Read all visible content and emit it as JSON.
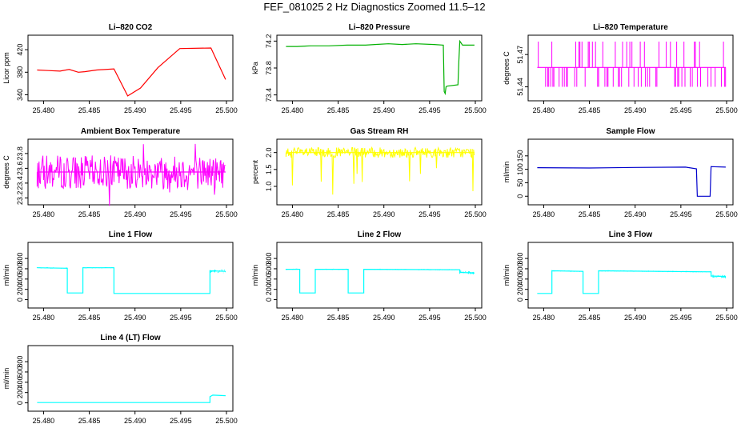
{
  "figure_title": "FEF_081025  2 Hz Diagnostics Zoomed 11.5–12",
  "chart_data": [
    {
      "type": "line",
      "title": "Li–820 CO2",
      "ylabel": "Licor ppm",
      "color": "#ff0000",
      "xlim": [
        25.479,
        25.5
      ],
      "ylim": [
        335,
        440
      ],
      "xticks": [
        "25.480",
        "25.485",
        "25.490",
        "25.495",
        "25.500"
      ],
      "yticks": [
        "340",
        "380",
        "420"
      ],
      "ytick_values": [
        340,
        380,
        420
      ],
      "series": [
        {
          "x": [
            25.4793,
            25.4805,
            25.4805,
            25.4818,
            25.4818,
            25.4828,
            25.4828,
            25.4838,
            25.4838,
            25.4845,
            25.4845,
            25.4858,
            25.4858,
            25.4877,
            25.4877,
            25.4892,
            25.4892,
            25.4906,
            25.4906,
            25.4925,
            25.4925,
            25.4949,
            25.4949,
            25.4983,
            25.4983,
            25.4999
          ],
          "y": [
            384,
            383,
            383,
            382,
            382,
            385,
            385,
            380,
            380,
            381,
            381,
            384,
            384,
            386,
            386,
            338,
            338,
            352,
            352,
            388,
            388,
            422,
            422,
            423,
            423,
            367
          ]
        }
      ]
    },
    {
      "type": "line",
      "title": "Li–820 Pressure",
      "ylabel": "kPa",
      "color": "#00b000",
      "xlim": [
        25.479,
        25.5
      ],
      "ylim": [
        73.36,
        74.24
      ],
      "xticks": [
        "25.480",
        "25.485",
        "25.490",
        "25.495",
        "25.500"
      ],
      "yticks": [
        "73.4",
        "73.8",
        "74.2"
      ],
      "ytick_values": [
        73.4,
        73.8,
        74.2
      ],
      "series": [
        {
          "x": [
            25.4793,
            25.4805,
            25.482,
            25.484,
            25.486,
            25.488,
            25.489,
            25.4905,
            25.492,
            25.4935,
            25.4955,
            25.4965,
            25.4966,
            25.4967,
            25.4968,
            25.4969,
            25.4981,
            25.4982,
            25.4983,
            25.4984,
            25.4986,
            25.4999
          ],
          "y": [
            74.12,
            74.12,
            74.13,
            74.13,
            74.14,
            74.14,
            74.15,
            74.16,
            74.15,
            74.16,
            74.15,
            74.14,
            73.45,
            73.42,
            73.52,
            73.53,
            73.55,
            73.9,
            74.2,
            74.18,
            74.14,
            74.14
          ]
        }
      ]
    },
    {
      "type": "line",
      "title": "Li–820 Temperature",
      "ylabel": "degrees C",
      "color": "#ff00ff",
      "xlim": [
        25.479,
        25.5
      ],
      "ylim": [
        51.43,
        51.485
      ],
      "xticks": [
        "25.480",
        "25.485",
        "25.490",
        "25.495",
        "25.500"
      ],
      "yticks": [
        "51.44",
        "51.47"
      ],
      "ytick_values": [
        51.44,
        51.47
      ],
      "series": [
        {
          "x": [
            25.4793,
            25.4999
          ],
          "y": [
            51.458,
            51.458
          ]
        }
      ]
    },
    {
      "type": "line",
      "title": "Ambient Box Temperature",
      "ylabel": "degrees C",
      "color": "#ff00ff",
      "xlim": [
        25.479,
        25.5
      ],
      "ylim": [
        23.15,
        23.95
      ],
      "xticks": [
        "25.480",
        "25.485",
        "25.490",
        "25.495",
        "25.500"
      ],
      "yticks": [
        "23.2",
        "23.4",
        "23.6",
        "23.8"
      ],
      "ytick_values": [
        23.2,
        23.4,
        23.6,
        23.8
      ],
      "series": [
        {
          "x": [
            25.4793,
            25.4999
          ],
          "y": [
            23.55,
            23.55
          ]
        }
      ]
    },
    {
      "type": "line",
      "title": "Gas Stream RH",
      "ylabel": "percent",
      "color": "#ffff00",
      "xlim": [
        25.479,
        25.5
      ],
      "ylim": [
        0.55,
        2.3
      ],
      "xticks": [
        "25.480",
        "25.485",
        "25.490",
        "25.495",
        "25.500"
      ],
      "yticks": [
        "1.0",
        "1.5",
        "2.0"
      ],
      "ytick_values": [
        1.0,
        1.5,
        2.0
      ],
      "series": [
        {
          "x": [
            25.4793,
            25.4999
          ],
          "y": [
            2.0,
            2.0
          ]
        }
      ]
    },
    {
      "type": "line",
      "title": "Sample Flow",
      "ylabel": "ml/min",
      "color": "#0000cc",
      "xlim": [
        25.479,
        25.5
      ],
      "ylim": [
        -20,
        200
      ],
      "xticks": [
        "25.480",
        "25.485",
        "25.490",
        "25.495",
        "25.500"
      ],
      "yticks": [
        "0",
        "50",
        "100",
        "150"
      ],
      "ytick_values": [
        0,
        50,
        100,
        150
      ],
      "series": [
        {
          "x": [
            25.4793,
            25.485,
            25.49,
            25.4955,
            25.4967,
            25.4968,
            25.4982,
            25.4983,
            25.4999
          ],
          "y": [
            106,
            105,
            107,
            108,
            102,
            0,
            0,
            110,
            108
          ]
        }
      ]
    },
    {
      "type": "line",
      "title": "Line 1 Flow",
      "ylabel": "ml/min",
      "color": "#00ffff",
      "xlim": [
        25.479,
        25.5
      ],
      "ylim": [
        -100,
        1050
      ],
      "xticks": [
        "25.480",
        "25.485",
        "25.490",
        "25.495",
        "25.500"
      ],
      "yticks": [
        "0",
        "200",
        "400",
        "600",
        "800"
      ],
      "ytick_values": [
        0,
        200,
        400,
        600,
        800
      ],
      "series": [
        {
          "x": [
            25.4793,
            25.4826,
            25.4826,
            25.4843,
            25.4843,
            25.4877,
            25.4877,
            25.4982,
            25.4982,
            25.4999
          ],
          "y": [
            620,
            610,
            130,
            130,
            620,
            620,
            120,
            120,
            560,
            550
          ]
        }
      ]
    },
    {
      "type": "line",
      "title": "Line 2 Flow",
      "ylabel": "ml/min",
      "color": "#00ffff",
      "xlim": [
        25.479,
        25.5
      ],
      "ylim": [
        -100,
        1050
      ],
      "xticks": [
        "25.480",
        "25.485",
        "25.490",
        "25.495",
        "25.500"
      ],
      "yticks": [
        "0",
        "200",
        "400",
        "600",
        "800"
      ],
      "ytick_values": [
        0,
        200,
        400,
        600,
        800
      ],
      "series": [
        {
          "x": [
            25.4793,
            25.4808,
            25.4808,
            25.4825,
            25.4825,
            25.4861,
            25.4861,
            25.4878,
            25.4878,
            25.4983,
            25.4983,
            25.4999
          ],
          "y": [
            590,
            590,
            130,
            130,
            590,
            590,
            130,
            130,
            590,
            580,
            530,
            520
          ]
        }
      ]
    },
    {
      "type": "line",
      "title": "Line 3 Flow",
      "ylabel": "ml/min",
      "color": "#00ffff",
      "xlim": [
        25.479,
        25.5
      ],
      "ylim": [
        -100,
        1050
      ],
      "xticks": [
        "25.480",
        "25.485",
        "25.490",
        "25.495",
        "25.500"
      ],
      "yticks": [
        "0",
        "200",
        "400",
        "600",
        "800"
      ],
      "ytick_values": [
        0,
        200,
        400,
        600,
        800
      ],
      "series": [
        {
          "x": [
            25.4793,
            25.4809,
            25.4809,
            25.4843,
            25.4843,
            25.486,
            25.486,
            25.4983,
            25.4983,
            25.4999
          ],
          "y": [
            120,
            120,
            560,
            550,
            120,
            120,
            560,
            540,
            460,
            450
          ]
        }
      ]
    },
    {
      "type": "line",
      "title": "Line 4 (LT) Flow",
      "ylabel": "ml/min",
      "color": "#00ffff",
      "xlim": [
        25.479,
        25.5
      ],
      "ylim": [
        -100,
        1050
      ],
      "xticks": [
        "25.480",
        "25.485",
        "25.490",
        "25.495",
        "25.500"
      ],
      "yticks": [
        "0",
        "200",
        "400",
        "600",
        "800"
      ],
      "ytick_values": [
        0,
        200,
        400,
        600,
        800
      ],
      "series": [
        {
          "x": [
            25.4793,
            25.4982,
            25.4982,
            25.4985,
            25.4999
          ],
          "y": [
            5,
            5,
            120,
            150,
            140
          ]
        }
      ]
    }
  ]
}
